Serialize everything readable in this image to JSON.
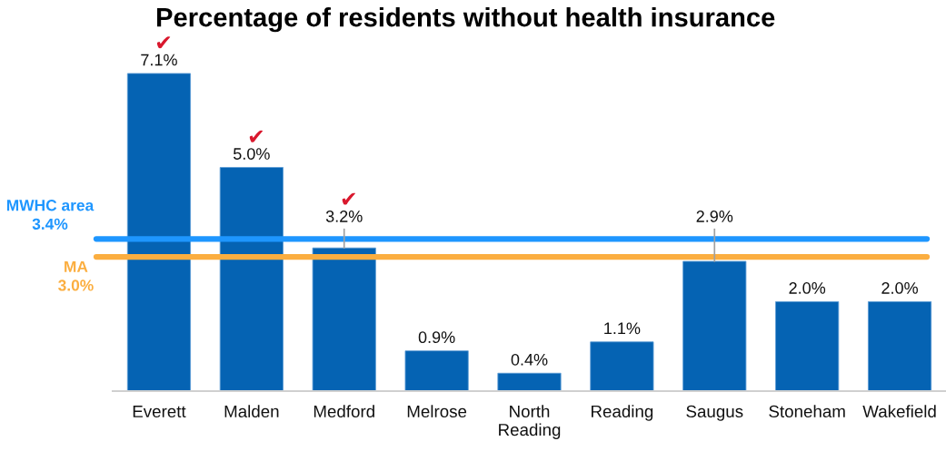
{
  "chart_data": {
    "type": "bar",
    "title": "Percentage of residents without health insurance",
    "categories": [
      "Everett",
      "Malden",
      "Medford",
      "Melrose",
      "North\nReading",
      "Reading",
      "Saugus",
      "Stoneham",
      "Wakefield"
    ],
    "values": [
      7.1,
      5.0,
      3.2,
      0.9,
      0.4,
      1.1,
      2.9,
      2.0,
      2.0
    ],
    "color": "#0563b3",
    "value_labels": [
      "7.1%",
      "5.0%",
      "3.2%",
      "0.9%",
      "0.4%",
      "1.1%",
      "2.9%",
      "2.0%",
      "2.0%"
    ],
    "ref_lines": [
      {
        "axis": "y",
        "value": 3.4,
        "label": "MWHC area\n3.4%",
        "color": "#1e96ff"
      },
      {
        "axis": "y",
        "value": 3.0,
        "label": "MA\n3.0%",
        "color": "#fbae40"
      }
    ],
    "annotations": [
      {
        "text": "✔",
        "x": "Everett",
        "y": 7.1
      },
      {
        "text": "✔",
        "x": "Malden",
        "y": 5.0
      },
      {
        "text": "✔",
        "x": "Medford",
        "y": 3.2
      }
    ],
    "grid": false
  }
}
